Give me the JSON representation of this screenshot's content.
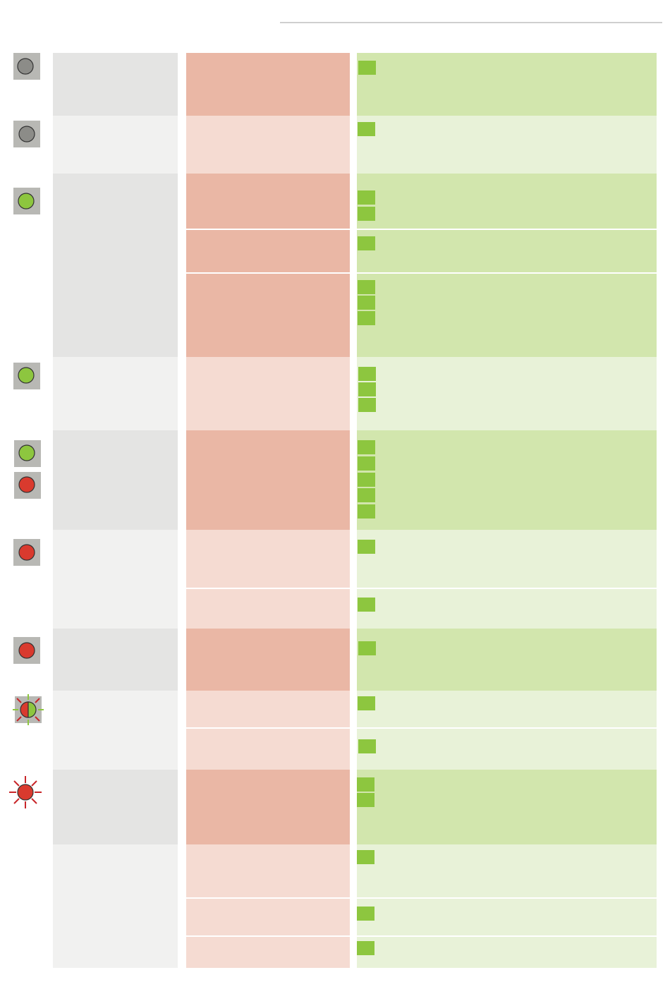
{
  "colors": {
    "led_off": "#8c8c88",
    "led_green": "#8dc63f",
    "led_red": "#d93a2e",
    "flash_ray": "#c8262a",
    "flash_ray_green": "#8dc63f",
    "marker": "#8dc63f",
    "col1_dark": "#e4e4e3",
    "col1_light": "#f1f1f0",
    "col2_dark": "#eab7a5",
    "col2_light": "#f5dbd2",
    "col3_dark": "#d2e6ad",
    "col3_light": "#e8f2d8"
  },
  "led_icons": [
    {
      "state": "off"
    },
    {
      "state": "off"
    },
    {
      "state": "green"
    },
    {
      "state": "green"
    },
    {
      "state": "green"
    },
    {
      "state": "red"
    },
    {
      "state": "red"
    },
    {
      "state": "red"
    },
    {
      "state": "red-green-flashing"
    },
    {
      "state": "red-flashing"
    }
  ],
  "table": {
    "groups": 9,
    "rows": 16
  }
}
